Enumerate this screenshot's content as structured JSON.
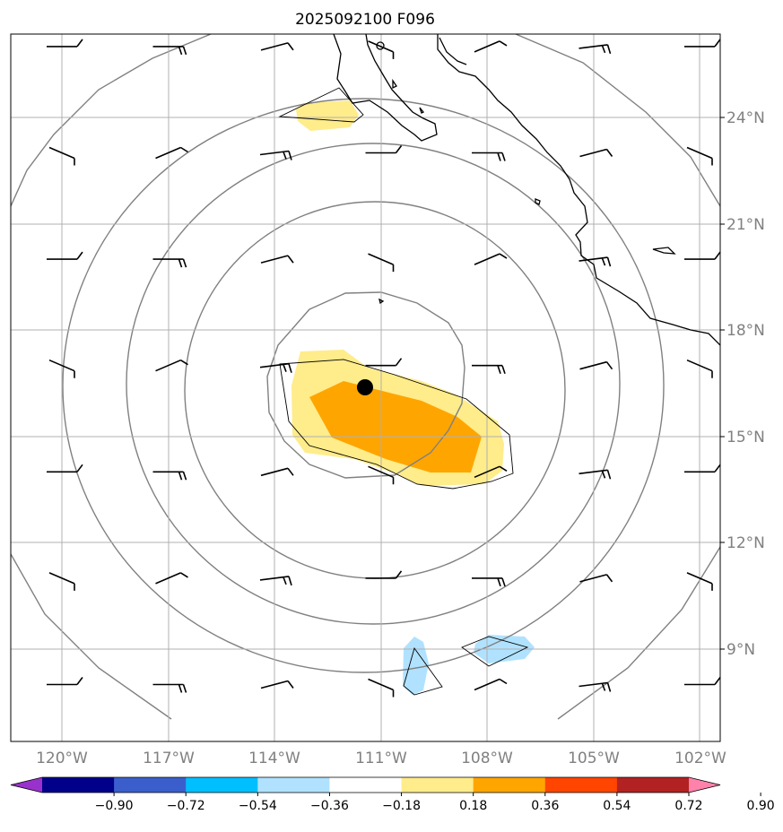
{
  "title": "2025092100 F096",
  "map": {
    "lon_labels": [
      "120°W",
      "117°W",
      "114°W",
      "111°W",
      "108°W",
      "105°W",
      "102°W"
    ],
    "lat_labels": [
      "24°N",
      "21°N",
      "18°N",
      "15°N",
      "12°N",
      "9°N"
    ],
    "projection": "Plate Carree",
    "gridlines": true,
    "lon_range": [
      -121.5,
      -101.4
    ],
    "lat_range": [
      6.7,
      26.7
    ]
  },
  "storm_center": {
    "lon": -111.45,
    "lat": 16.35
  },
  "colorbar": {
    "ticks": [
      "−0.90",
      "−0.72",
      "−0.54",
      "−0.36",
      "−0.18",
      "0.18",
      "0.36",
      "0.54",
      "0.72",
      "0.90"
    ],
    "colors": [
      "#9932cc",
      "#00008b",
      "#3a5fcd",
      "#00bfff",
      "#b0e2ff",
      "#ffffff",
      "#ffec8b",
      "#ffa500",
      "#ff4500",
      "#b22222",
      "#ff82ab"
    ],
    "extend": "both"
  },
  "chart_data": {
    "type": "map",
    "fields": "filled anomaly contours, gray contour rings, wind barbs",
    "barb_lons": [
      -120,
      -117,
      -114,
      -111,
      -108,
      -105,
      -102
    ],
    "barb_lats": [
      26,
      23,
      20,
      17,
      14,
      11,
      8
    ]
  }
}
